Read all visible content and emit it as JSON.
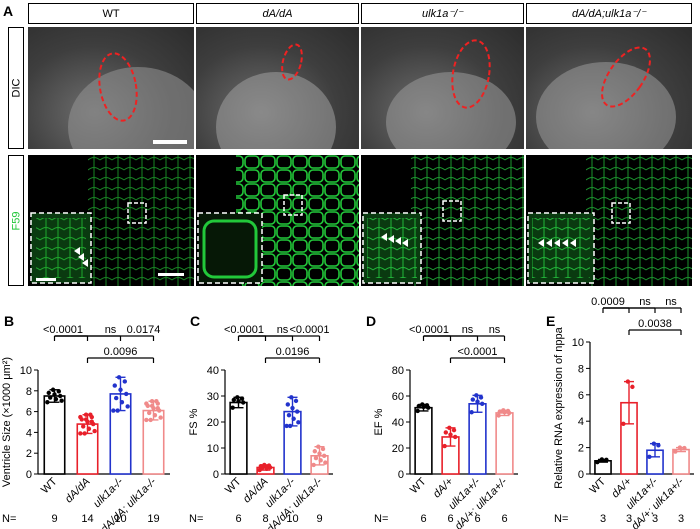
{
  "panel_A": {
    "letter": "A",
    "columns": [
      "WT",
      "dA/dA",
      "ulk1a⁻/⁻",
      "dA/dA;ulk1a⁻/⁻"
    ],
    "row_labels": [
      "DIC",
      "F59"
    ]
  },
  "chart_data": [
    {
      "panel": "B",
      "type": "bar",
      "ylabel": "Ventricle Size (×1000 μm²)",
      "ylim": [
        0,
        10
      ],
      "yticks": [
        0,
        2,
        4,
        6,
        8,
        10
      ],
      "categories": [
        "WT",
        "dA/dA",
        "ulk1a-/-",
        "dA/dA; ulk1a-/-"
      ],
      "values": [
        7.5,
        4.8,
        7.7,
        6.1
      ],
      "errors": [
        0.6,
        0.9,
        1.6,
        0.9
      ],
      "n": [
        9,
        14,
        10,
        19
      ],
      "colors": [
        "#000000",
        "#e8202a",
        "#2233cc",
        "#f08a8a"
      ],
      "p_values": [
        {
          "label": "<0.0001",
          "from": 0,
          "to": 1
        },
        {
          "label": "ns",
          "from": 0,
          "to": 2
        },
        {
          "label": "0.0174",
          "from": 0,
          "to": 3
        },
        {
          "label": "0.0096",
          "from": 1,
          "to": 3
        }
      ]
    },
    {
      "panel": "C",
      "type": "bar",
      "ylabel": "FS %",
      "ylim": [
        0,
        40
      ],
      "yticks": [
        0,
        10,
        20,
        30,
        40
      ],
      "categories": [
        "WT",
        "dA/dA",
        "ulk1a-/-",
        "dA/dA; ulk1a-/-"
      ],
      "values": [
        27.5,
        2.5,
        24,
        7
      ],
      "errors": [
        2,
        1,
        5.5,
        3.5
      ],
      "n": [
        6,
        8,
        10,
        9
      ],
      "colors": [
        "#000000",
        "#e8202a",
        "#2233cc",
        "#f08a8a"
      ],
      "p_values": [
        {
          "label": "<0.0001",
          "from": 0,
          "to": 1
        },
        {
          "label": "ns",
          "from": 0,
          "to": 2
        },
        {
          "label": "<0.0001",
          "from": 0,
          "to": 3
        },
        {
          "label": "0.0196",
          "from": 1,
          "to": 3
        }
      ]
    },
    {
      "panel": "D",
      "type": "bar",
      "ylabel": "EF %",
      "ylim": [
        0,
        80
      ],
      "yticks": [
        0,
        20,
        40,
        60,
        80
      ],
      "categories": [
        "WT",
        "dA/+",
        "ulk1a+/-",
        "dA/+; ulk1a+/-"
      ],
      "values": [
        51,
        28.5,
        54,
        47
      ],
      "errors": [
        2.5,
        7,
        6.5,
        2
      ],
      "n": [
        6,
        6,
        6,
        6
      ],
      "colors": [
        "#000000",
        "#e8202a",
        "#2233cc",
        "#f08a8a"
      ],
      "p_values": [
        {
          "label": "<0.0001",
          "from": 0,
          "to": 1
        },
        {
          "label": "ns",
          "from": 0,
          "to": 2
        },
        {
          "label": "ns",
          "from": 0,
          "to": 3
        },
        {
          "label": "<0.0001",
          "from": 1,
          "to": 3
        }
      ]
    },
    {
      "panel": "E",
      "type": "bar",
      "ylabel": "Relative RNA expression of nppa",
      "ylim": [
        0,
        10
      ],
      "yticks": [
        0,
        2,
        4,
        6,
        8,
        10
      ],
      "categories": [
        "WT",
        "dA/+",
        "ulk1a+/-",
        "dA/+; ulk1a+/-"
      ],
      "values": [
        1.0,
        5.4,
        1.8,
        1.85
      ],
      "errors": [
        0.1,
        1.6,
        0.5,
        0.15
      ],
      "n": [
        3,
        3,
        3,
        3
      ],
      "colors": [
        "#000000",
        "#e8202a",
        "#2233cc",
        "#f08a8a"
      ],
      "p_values": [
        {
          "label": "0.0009",
          "from": 0,
          "to": 1
        },
        {
          "label": "ns",
          "from": 0,
          "to": 2
        },
        {
          "label": "ns",
          "from": 0,
          "to": 3
        },
        {
          "label": "0.0038",
          "from": 1,
          "to": 3
        }
      ]
    }
  ],
  "n_label": "N="
}
